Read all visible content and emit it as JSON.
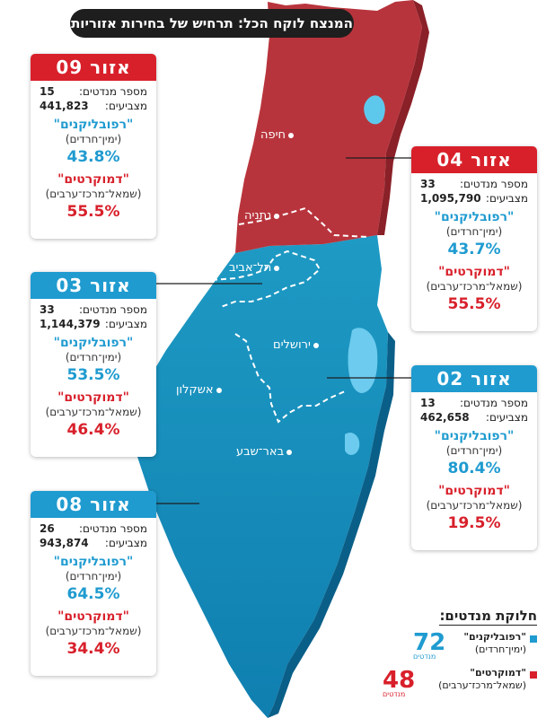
{
  "title": "המנצח לוקח הכל: תרחיש של בחירות אזוריות",
  "colors": {
    "republicans": "#1f9bd0",
    "democrats": "#d8202b",
    "north_map": "#b8343c",
    "south_map": "#1a8fb8"
  },
  "cities": [
    "חיפה",
    "נתניה",
    "תל־אביב",
    "ירושלים",
    "אשקלון",
    "באר־שבע"
  ],
  "zones": [
    {
      "label": "אזור 09",
      "seats_label": "מספר מנדטים:",
      "seats": "15",
      "voters_label": "מצביעים:",
      "voters": "441,823",
      "rep_name": "\"רפובליקנים\"",
      "rep_desc": "(ימין־חרדים)",
      "rep_pct": "43.8%",
      "dem_name": "\"דמוקרטים\"",
      "dem_desc": "(שמאל־מרכז־ערבים)",
      "dem_pct": "55.5%",
      "winner": "democrats"
    },
    {
      "label": "אזור 04",
      "seats_label": "מספר מנדטים:",
      "seats": "33",
      "voters_label": "מצביעים:",
      "voters": "1,095,790",
      "rep_name": "\"רפובליקנים\"",
      "rep_desc": "(ימין־חרדים)",
      "rep_pct": "43.7%",
      "dem_name": "\"דמוקרטים\"",
      "dem_desc": "(שמאל־מרכז־ערבים)",
      "dem_pct": "55.5%",
      "winner": "democrats"
    },
    {
      "label": "אזור 03",
      "seats_label": "מספר מנדטים:",
      "seats": "33",
      "voters_label": "מצביעים:",
      "voters": "1,144,379",
      "rep_name": "\"רפובליקנים\"",
      "rep_desc": "(ימין־חרדים)",
      "rep_pct": "53.5%",
      "dem_name": "\"דמוקרטים\"",
      "dem_desc": "(שמאל־מרכז־ערבים)",
      "dem_pct": "46.4%",
      "winner": "republicans"
    },
    {
      "label": "אזור 02",
      "seats_label": "מספר מנדטים:",
      "seats": "13",
      "voters_label": "מצביעים:",
      "voters": "462,658",
      "rep_name": "\"רפובליקנים\"",
      "rep_desc": "(ימין־חרדים)",
      "rep_pct": "80.4%",
      "dem_name": "\"דמוקרטים\"",
      "dem_desc": "(שמאל־מרכז־ערבים)",
      "dem_pct": "19.5%",
      "winner": "republicans"
    },
    {
      "label": "אזור 08",
      "seats_label": "מספר מנדטים:",
      "seats": "26",
      "voters_label": "מצביעים:",
      "voters": "943,874",
      "rep_name": "\"רפובליקנים\"",
      "rep_desc": "(ימין־חרדים)",
      "rep_pct": "64.5%",
      "dem_name": "\"דמוקרטים\"",
      "dem_desc": "(שמאל־מרכז־ערבים)",
      "dem_pct": "34.4%",
      "winner": "republicans"
    }
  ],
  "legend": {
    "title": "חלוקת מנדטים:",
    "rep_name": "\"רפובליקנים\"",
    "rep_desc": "(ימין־חרדים)",
    "rep_seats": "72",
    "dem_name": "\"דמוקרטים\"",
    "dem_desc": "(שמאל־מרכז־ערבים)",
    "dem_seats": "48",
    "unit": "מנדטים"
  }
}
